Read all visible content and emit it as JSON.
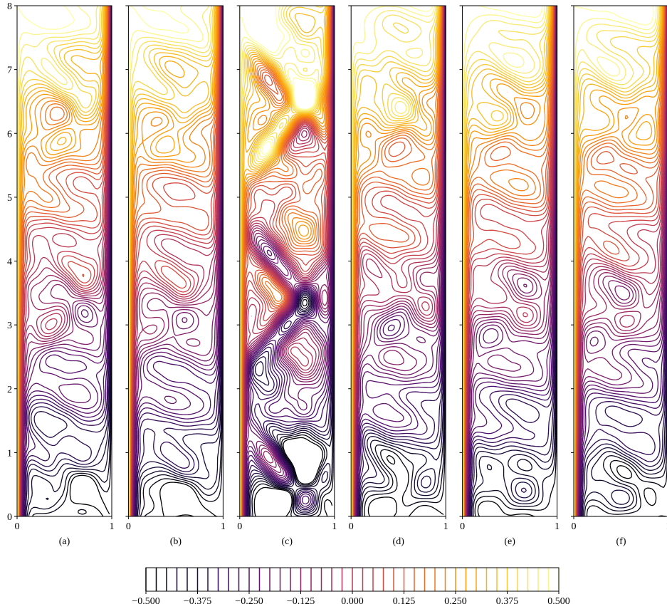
{
  "chart_data": [
    {
      "type": "contour",
      "label": "(a)",
      "xlim": [
        0,
        1
      ],
      "xticks": [
        0,
        1
      ],
      "ylim": [
        0,
        8
      ],
      "yticks": [
        0,
        1,
        2,
        3,
        4,
        5,
        6,
        7,
        8
      ],
      "show_ytick_labels": true
    },
    {
      "type": "contour",
      "label": "(b)",
      "xlim": [
        0,
        1
      ],
      "xticks": [
        0,
        1
      ],
      "ylim": [
        0,
        8
      ],
      "yticks": [
        0,
        1,
        2,
        3,
        4,
        5,
        6,
        7,
        8
      ],
      "show_ytick_labels": false
    },
    {
      "type": "contour",
      "label": "(c)",
      "xlim": [
        0,
        1
      ],
      "xticks": [
        0,
        1
      ],
      "ylim": [
        0,
        8
      ],
      "yticks": [
        0,
        1,
        2,
        3,
        4,
        5,
        6,
        7,
        8
      ],
      "show_ytick_labels": false
    },
    {
      "type": "contour",
      "label": "(d)",
      "xlim": [
        0,
        1
      ],
      "xticks": [
        0,
        1
      ],
      "ylim": [
        0,
        8
      ],
      "yticks": [
        0,
        1,
        2,
        3,
        4,
        5,
        6,
        7,
        8
      ],
      "show_ytick_labels": false
    },
    {
      "type": "contour",
      "label": "(e)",
      "xlim": [
        0,
        1
      ],
      "xticks": [
        0,
        1
      ],
      "ylim": [
        0,
        8
      ],
      "yticks": [
        0,
        1,
        2,
        3,
        4,
        5,
        6,
        7,
        8
      ],
      "show_ytick_labels": false
    },
    {
      "type": "contour",
      "label": "(f)",
      "xlim": [
        0,
        1
      ],
      "xticks": [
        0,
        1
      ],
      "ylim": [
        0,
        8
      ],
      "yticks": [
        0,
        1,
        2,
        3,
        4,
        5,
        6,
        7,
        8
      ],
      "show_ytick_labels": false
    },
    {
      "type": "colorbar",
      "colormap": "inferno",
      "xlim": [
        -0.5,
        0.5
      ],
      "levels": [
        -0.5,
        -0.475,
        -0.45,
        -0.425,
        -0.4,
        -0.375,
        -0.35,
        -0.325,
        -0.3,
        -0.275,
        -0.25,
        -0.225,
        -0.2,
        -0.175,
        -0.15,
        -0.125,
        -0.1,
        -0.075,
        -0.05,
        -0.025,
        0,
        0.025,
        0.05,
        0.075,
        0.1,
        0.125,
        0.15,
        0.175,
        0.2,
        0.225,
        0.25,
        0.275,
        0.3,
        0.325,
        0.35,
        0.375,
        0.4,
        0.425,
        0.45,
        0.475,
        0.5
      ],
      "xticks": [
        {
          "value": -0.5,
          "label": "−0.500"
        },
        {
          "value": -0.375,
          "label": "−0.375"
        },
        {
          "value": -0.25,
          "label": "−0.250"
        },
        {
          "value": -0.125,
          "label": "−0.125"
        },
        {
          "value": 0,
          "label": "0.000"
        },
        0.125,
        {
          "value": 0.25,
          "label": "0.250"
        },
        0.375,
        {
          "value": 0.5,
          "label": "0.500"
        }
      ]
    }
  ]
}
